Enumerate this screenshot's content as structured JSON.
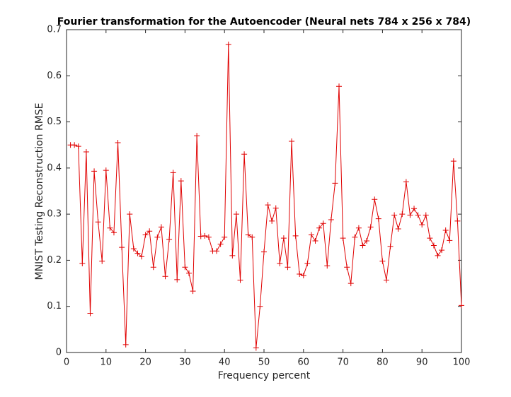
{
  "chart_data": {
    "type": "line",
    "title": "Fourier transformation for the Autoencoder (Neural nets 784 x 256 x 784)",
    "xlabel": "Frequency percent",
    "ylabel": "MNIST Testing Reconstruction RMSE",
    "x": [
      1,
      2,
      3,
      4,
      5,
      6,
      7,
      8,
      9,
      10,
      11,
      12,
      13,
      14,
      15,
      16,
      17,
      18,
      19,
      20,
      21,
      22,
      23,
      24,
      25,
      26,
      27,
      28,
      29,
      30,
      31,
      32,
      33,
      34,
      35,
      36,
      37,
      38,
      39,
      40,
      41,
      42,
      43,
      44,
      45,
      46,
      47,
      48,
      49,
      50,
      51,
      52,
      53,
      54,
      55,
      56,
      57,
      58,
      59,
      60,
      61,
      62,
      63,
      64,
      65,
      66,
      67,
      68,
      69,
      70,
      71,
      72,
      73,
      74,
      75,
      76,
      77,
      78,
      79,
      80,
      81,
      82,
      83,
      84,
      85,
      86,
      87,
      88,
      89,
      90,
      91,
      92,
      93,
      94,
      95,
      96,
      97,
      98,
      99,
      100
    ],
    "series": [
      {
        "name": "RMSE",
        "color": "#e00000",
        "marker": "+",
        "values": [
          0.45,
          0.45,
          0.447,
          0.193,
          0.435,
          0.085,
          0.393,
          0.283,
          0.198,
          0.395,
          0.27,
          0.26,
          0.455,
          0.228,
          0.017,
          0.3,
          0.225,
          0.215,
          0.208,
          0.255,
          0.263,
          0.185,
          0.25,
          0.272,
          0.165,
          0.245,
          0.39,
          0.158,
          0.372,
          0.185,
          0.172,
          0.133,
          0.47,
          0.252,
          0.253,
          0.25,
          0.22,
          0.22,
          0.235,
          0.25,
          0.668,
          0.21,
          0.3,
          0.157,
          0.43,
          0.255,
          0.25,
          0.01,
          0.1,
          0.218,
          0.32,
          0.285,
          0.313,
          0.193,
          0.248,
          0.185,
          0.458,
          0.253,
          0.17,
          0.167,
          0.193,
          0.255,
          0.242,
          0.27,
          0.28,
          0.188,
          0.288,
          0.367,
          0.577,
          0.248,
          0.185,
          0.15,
          0.25,
          0.27,
          0.232,
          0.242,
          0.272,
          0.332,
          0.29,
          0.198,
          0.157,
          0.23,
          0.298,
          0.268,
          0.3,
          0.37,
          0.298,
          0.312,
          0.298,
          0.277,
          0.298,
          0.248,
          0.232,
          0.21,
          0.222,
          0.265,
          0.243,
          0.415,
          0.285,
          0.102
        ]
      }
    ],
    "xlim": [
      0,
      100
    ],
    "ylim": [
      0,
      0.7
    ],
    "xticks": [
      0,
      10,
      20,
      30,
      40,
      50,
      60,
      70,
      80,
      90,
      100
    ],
    "yticks": [
      0,
      0.1,
      0.2,
      0.3,
      0.4,
      0.5,
      0.6,
      0.7
    ]
  }
}
